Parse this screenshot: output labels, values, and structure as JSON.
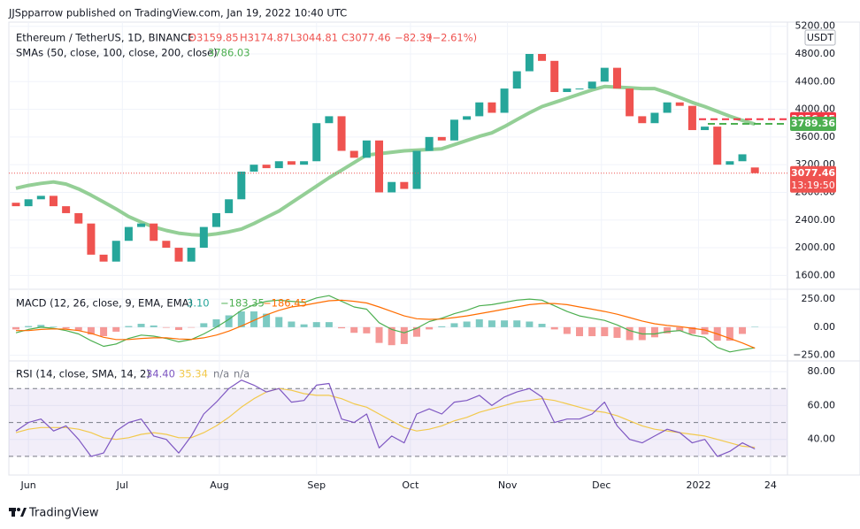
{
  "header": {
    "publisher": "JJSpparrow published on TradingView.com, Jan 19, 2022 10:40 UTC",
    "currency": "USDT",
    "footer": "TradingView"
  },
  "chart_data": [
    {
      "type": "candlestick",
      "title": "Ethereum / TetherUS, 1D, BINANCE",
      "ohlc_texts": [
        "O3159.85",
        "H3174.87",
        "L3044.81",
        "C3077.46",
        "−82.39",
        "(−2.61%)"
      ],
      "categories": [
        null,
        null,
        null,
        null,
        null,
        null,
        null,
        null,
        null,
        null,
        null,
        null,
        null,
        null,
        null,
        null,
        null,
        null,
        null,
        null,
        null,
        null,
        null,
        null,
        null,
        null,
        null,
        null,
        null,
        null,
        null,
        null,
        null,
        null,
        null,
        null,
        null,
        null,
        null,
        null,
        null,
        null,
        null,
        null,
        null,
        null,
        null,
        null,
        null,
        null,
        null,
        null,
        null,
        null,
        null,
        null,
        null,
        null,
        null,
        null
      ],
      "xlim": [
        -0.565,
        61.6
      ],
      "xticks": [
        {
          "value": 1,
          "label": "Jun"
        },
        {
          "value": 8.5,
          "label": "Jul"
        },
        {
          "value": 16.25,
          "label": "Aug"
        },
        {
          "value": 24,
          "label": "Sep"
        },
        {
          "value": 31.5,
          "label": "Oct"
        },
        {
          "value": 39.25,
          "label": "Nov"
        },
        {
          "value": 46.75,
          "label": "Dec"
        },
        {
          "value": 54.5,
          "label": "2022"
        },
        {
          "value": 60.25,
          "label": "24"
        }
      ],
      "ylim": [
        1400,
        5260
      ],
      "yticks": [
        {
          "value": 1600,
          "label": "1600.00"
        },
        {
          "value": 2000,
          "label": "2000.00"
        },
        {
          "value": 2400,
          "label": "2400.00"
        },
        {
          "value": 2800,
          "label": "2800.00"
        },
        {
          "value": 3200,
          "label": "3200.00"
        },
        {
          "value": 3600,
          "label": "3600.00"
        },
        {
          "value": 4000,
          "label": "4000.00"
        },
        {
          "value": 4400,
          "label": "4400.00"
        },
        {
          "value": 4800,
          "label": "4800.00"
        },
        {
          "value": 5200,
          "label": "5200.00"
        }
      ],
      "grid": true,
      "up_color": "#26a69a",
      "down_color": "#ef5350",
      "series": [
        {
          "name": "Ethereum / TetherUS, 1D, BINANCE",
          "open": [
            2650,
            2600,
            2700,
            2750,
            2600,
            2500,
            2350,
            1900,
            1800,
            2100,
            2300,
            2350,
            2100,
            2000,
            1800,
            2000,
            2300,
            2500,
            2700,
            3100,
            3200,
            3150,
            3250,
            3200,
            3250,
            3800,
            3900,
            3400,
            3300,
            3550,
            2800,
            2950,
            2850,
            3400,
            3600,
            3550,
            3850,
            3900,
            4100,
            3950,
            4300,
            4550,
            4800,
            4700,
            4250,
            4300,
            4300,
            4400,
            4600,
            4300,
            3900,
            3800,
            3950,
            4100,
            4050,
            3700,
            3750,
            3200,
            3250,
            3159.85
          ],
          "close": [
            2600,
            2700,
            2750,
            2600,
            2500,
            2350,
            1900,
            1800,
            2100,
            2300,
            2350,
            2100,
            2000,
            1800,
            2000,
            2300,
            2500,
            2700,
            3100,
            3200,
            3150,
            3250,
            3200,
            3250,
            3800,
            3900,
            3400,
            3300,
            3550,
            2800,
            2950,
            2850,
            3400,
            3600,
            3550,
            3850,
            3900,
            4100,
            3950,
            4300,
            4550,
            4800,
            4700,
            4250,
            4300,
            4300,
            4400,
            4600,
            4300,
            3900,
            3800,
            3950,
            4100,
            4050,
            3700,
            3750,
            3200,
            3250,
            3350,
            3077.46
          ]
        },
        {
          "name": "SMAs (50, close, 100, close, 200, close)",
          "color": "#81c784",
          "values": [
            2860,
            2900,
            2930,
            2950,
            2920,
            2850,
            2760,
            2660,
            2560,
            2450,
            2370,
            2300,
            2250,
            2210,
            2190,
            2180,
            2200,
            2230,
            2270,
            2350,
            2440,
            2530,
            2650,
            2770,
            2890,
            3010,
            3120,
            3230,
            3340,
            3360,
            3380,
            3400,
            3410,
            3420,
            3430,
            3490,
            3550,
            3610,
            3660,
            3750,
            3850,
            3950,
            4040,
            4100,
            4160,
            4220,
            4280,
            4330,
            4320,
            4310,
            4300,
            4300,
            4240,
            4170,
            4100,
            4040,
            3970,
            3900,
            3840,
            3786.03
          ]
        }
      ],
      "price_lines": [
        {
          "value": 3856.45,
          "label": "3856.45",
          "color": "#f23645"
        },
        {
          "value": 3789.36,
          "label": "3789.36",
          "color": "#4caf50"
        }
      ],
      "last_price": {
        "value": 3077.46,
        "label": "3077.46",
        "countdown": "13:19:50",
        "color": "#ef5350"
      }
    },
    {
      "type": "macd",
      "title": "MACD (12, 26, close, 9, EMA, EMA)",
      "legend_values": [
        "3.10",
        "−183.35",
        "−186.45"
      ],
      "ylim": [
        -300,
        337
      ],
      "yticks": [
        {
          "value": 250,
          "label": "250.00"
        },
        {
          "value": 0,
          "label": "0.00"
        },
        {
          "value": -250,
          "label": "−250.00"
        }
      ],
      "series": [
        {
          "name": "Histogram",
          "color": "#26a69a",
          "neg_color": "#ef5350",
          "values": [
            -20,
            10,
            20,
            5,
            -12,
            -30,
            -65,
            -80,
            -40,
            10,
            30,
            15,
            -5,
            -25,
            -2,
            35,
            70,
            105,
            140,
            140,
            120,
            90,
            50,
            25,
            45,
            45,
            -10,
            -50,
            -55,
            -140,
            -160,
            -150,
            -85,
            -20,
            8,
            35,
            50,
            70,
            60,
            60,
            60,
            50,
            30,
            -20,
            -60,
            -80,
            -80,
            -80,
            -95,
            -115,
            -115,
            -90,
            -55,
            -35,
            -60,
            -65,
            -120,
            -120,
            -60,
            3.1
          ]
        },
        {
          "name": "MACD",
          "color": "#4caf50",
          "values": [
            -50,
            -20,
            0,
            -10,
            -30,
            -60,
            -120,
            -170,
            -150,
            -100,
            -70,
            -80,
            -100,
            -130,
            -110,
            -60,
            0,
            70,
            150,
            200,
            230,
            240,
            230,
            220,
            260,
            280,
            230,
            180,
            160,
            40,
            -20,
            -50,
            -10,
            50,
            80,
            120,
            150,
            190,
            200,
            220,
            240,
            250,
            240,
            190,
            140,
            100,
            80,
            60,
            20,
            -30,
            -60,
            -60,
            -40,
            -30,
            -70,
            -90,
            -180,
            -220,
            -200,
            -183.35
          ]
        },
        {
          "name": "Signal",
          "color": "#ff6d00",
          "values": [
            -30,
            -30,
            -20,
            -15,
            -18,
            -30,
            -55,
            -90,
            -110,
            -110,
            -100,
            -95,
            -95,
            -105,
            -108,
            -95,
            -70,
            -35,
            10,
            60,
            110,
            150,
            180,
            195,
            215,
            235,
            240,
            230,
            215,
            180,
            140,
            100,
            75,
            70,
            72,
            85,
            100,
            120,
            140,
            160,
            180,
            200,
            210,
            210,
            200,
            180,
            160,
            140,
            115,
            85,
            55,
            30,
            15,
            5,
            -10,
            -25,
            -60,
            -100,
            -140,
            -186.45
          ]
        }
      ]
    },
    {
      "type": "rsi",
      "title": "RSI (14, close, SMA, 14, 2)",
      "legend_values": [
        "34.40",
        "35.34",
        "n/a",
        "n/a"
      ],
      "ylim": [
        19,
        86.3
      ],
      "yticks": [
        {
          "value": 40,
          "label": "40.00"
        },
        {
          "value": 60,
          "label": "60.00"
        },
        {
          "value": 80,
          "label": "80.00"
        }
      ],
      "hlines": [
        70,
        50,
        30
      ],
      "band": [
        30,
        70
      ],
      "series": [
        {
          "name": "RSI",
          "color": "#7e57c2",
          "values": [
            45,
            50,
            52,
            45,
            48,
            40,
            30,
            32,
            45,
            50,
            52,
            42,
            40,
            32,
            42,
            55,
            62,
            70,
            75,
            72,
            68,
            70,
            62,
            63,
            72,
            73,
            52,
            50,
            55,
            35,
            42,
            38,
            55,
            58,
            55,
            62,
            63,
            66,
            60,
            65,
            68,
            70,
            65,
            50,
            52,
            52,
            55,
            62,
            48,
            40,
            38,
            42,
            46,
            44,
            38,
            40,
            30,
            33,
            38,
            34.4
          ]
        },
        {
          "name": "RSI MA",
          "color": "#f2c94c",
          "values": [
            44,
            46,
            47,
            47,
            47,
            46,
            44,
            41,
            40,
            41,
            43,
            44,
            43,
            41,
            41,
            44,
            48,
            53,
            59,
            64,
            68,
            70,
            69,
            67,
            66,
            66,
            64,
            61,
            59,
            55,
            51,
            47,
            45,
            46,
            48,
            51,
            53,
            56,
            58,
            60,
            62,
            63,
            64,
            63,
            61,
            59,
            57,
            56,
            54,
            51,
            48,
            46,
            45,
            44,
            43,
            42,
            40,
            38,
            36,
            35.34
          ]
        }
      ]
    }
  ]
}
